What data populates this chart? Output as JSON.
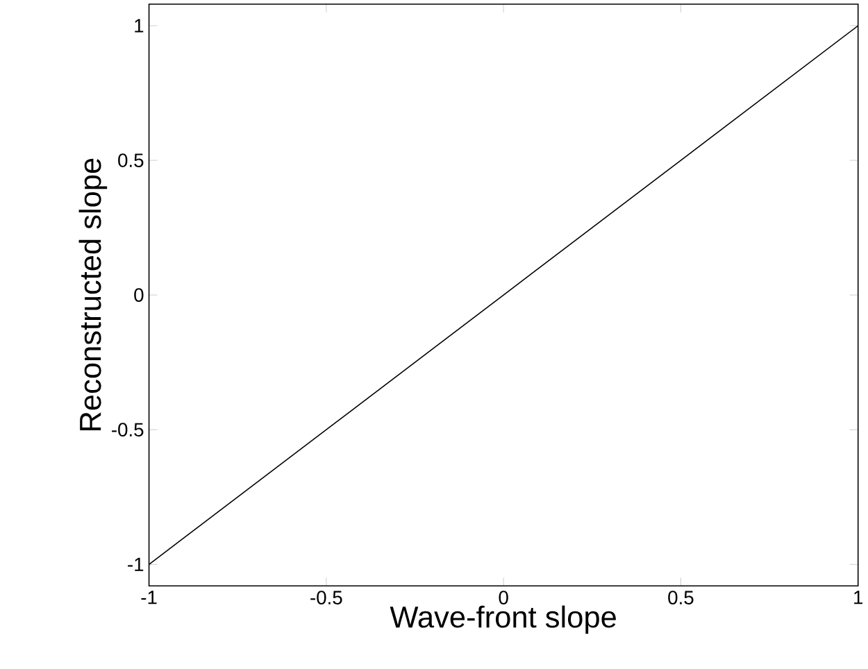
{
  "chart_data": {
    "type": "line",
    "xlabel": "Wave-front slope",
    "ylabel": "Reconstructed slope",
    "x": [
      -1,
      -0.5,
      0,
      0.5,
      1
    ],
    "series": [
      {
        "color": "#000000",
        "values": [
          -1,
          -0.5,
          0,
          0.5,
          1
        ]
      }
    ],
    "xlim": [
      -1,
      1
    ],
    "ylim": [
      -1.08,
      1.08
    ],
    "xticks": [
      -1,
      -0.5,
      0,
      0.5,
      1
    ],
    "yticks": [
      -1,
      -0.5,
      0,
      0.5,
      1
    ],
    "grid": false,
    "marker": "none",
    "line_style": "solid"
  }
}
